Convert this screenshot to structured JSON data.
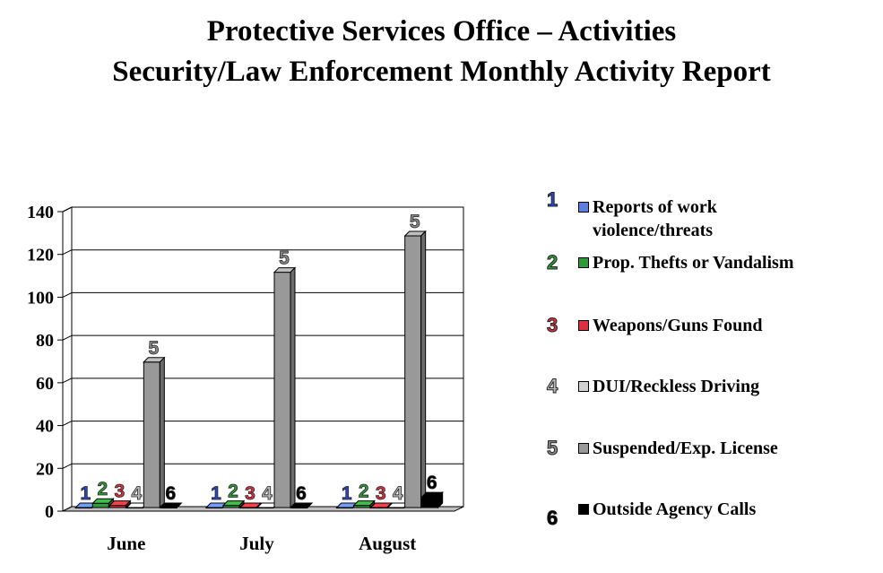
{
  "title_line1": "Protective Services Office – Activities",
  "title_line2": "Security/Law Enforcement Monthly Activity Report",
  "chart_data": {
    "type": "bar",
    "categories": [
      "June",
      "July",
      "August"
    ],
    "series": [
      {
        "name": "Reports of work violence/threats",
        "marker": "1",
        "color": "#5b7fe0",
        "values": [
          0,
          0,
          0
        ]
      },
      {
        "name": "Prop. Thefts or Vandalism",
        "marker": "2",
        "color": "#2f9a3a",
        "values": [
          2,
          1,
          1
        ]
      },
      {
        "name": "Weapons/Guns Found",
        "marker": "3",
        "color": "#d9313d",
        "values": [
          1,
          0,
          0
        ]
      },
      {
        "name": "DUI/Reckless Driving",
        "marker": "4",
        "color": "#d2d2d2",
        "values": [
          0,
          0,
          0
        ]
      },
      {
        "name": "Suspended/Exp. License",
        "marker": "5",
        "color": "#999999",
        "values": [
          68,
          110,
          127
        ]
      },
      {
        "name": "Outside Agency Calls",
        "marker": "6",
        "color": "#000000",
        "values": [
          0,
          0,
          5
        ]
      }
    ],
    "y_ticks": [
      "0",
      "20",
      "40",
      "60",
      "80",
      "100",
      "120",
      "140"
    ],
    "ylim": [
      0,
      140
    ],
    "grid": true,
    "legend_position": "right",
    "marker_colors": [
      "#2c46c8",
      "#2f9a3a",
      "#d9313d",
      "#bdbdbd",
      "#8a8a8a",
      "#000000"
    ]
  },
  "legend": [
    {
      "marker": "1",
      "label": "Reports of work violence/threats"
    },
    {
      "marker": "2",
      "label": "Prop. Thefts or Vandalism"
    },
    {
      "marker": "3",
      "label": "Weapons/Guns Found"
    },
    {
      "marker": "4",
      "label": "DUI/Reckless Driving"
    },
    {
      "marker": "5",
      "label": "Suspended/Exp. License"
    },
    {
      "marker": "6",
      "label": "Outside Agency Calls"
    }
  ]
}
